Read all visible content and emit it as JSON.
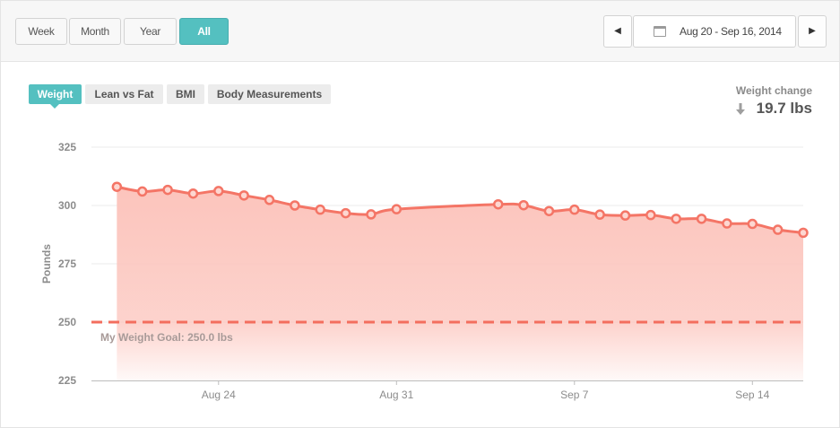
{
  "range_buttons": [
    {
      "label": "Week",
      "active": false
    },
    {
      "label": "Month",
      "active": false
    },
    {
      "label": "Year",
      "active": false
    },
    {
      "label": "All",
      "active": true
    }
  ],
  "date_range": "Aug 20 - Sep 16, 2014",
  "prev_icon": "chevron-left-icon",
  "next_icon": "chevron-right-icon",
  "tabs": [
    {
      "label": "Weight",
      "active": true
    },
    {
      "label": "Lean vs Fat",
      "active": false
    },
    {
      "label": "BMI",
      "active": false
    },
    {
      "label": "Body Measurements",
      "active": false
    }
  ],
  "weight_change": {
    "label": "Weight change",
    "value": "19.7 lbs",
    "direction": "down"
  },
  "colors": {
    "accent": "#54c0c0",
    "line": "#f47566",
    "fill": "#fcc4bc",
    "goal": "#f36e5e"
  },
  "chart_data": {
    "type": "area",
    "ylabel": "Pounds",
    "ylim": [
      225,
      325
    ],
    "yticks": [
      225,
      250,
      275,
      300,
      325
    ],
    "xlabel": "",
    "xticks": [
      {
        "date": "2014-08-24",
        "label": "Aug 24"
      },
      {
        "date": "2014-08-31",
        "label": "Aug 31"
      },
      {
        "date": "2014-09-07",
        "label": "Sep 7"
      },
      {
        "date": "2014-09-14",
        "label": "Sep 14"
      }
    ],
    "xlim": [
      "2014-08-19",
      "2014-09-16"
    ],
    "goal": {
      "value": 250,
      "label": "My Weight Goal: 250.0 lbs"
    },
    "grid": true,
    "series": [
      {
        "values": [
          {
            "date": "2014-08-20",
            "y": 308.0
          },
          {
            "date": "2014-08-21",
            "y": 306.0
          },
          {
            "date": "2014-08-22",
            "y": 306.7
          },
          {
            "date": "2014-08-23",
            "y": 305.1
          },
          {
            "date": "2014-08-24",
            "y": 306.2
          },
          {
            "date": "2014-08-25",
            "y": 304.3
          },
          {
            "date": "2014-08-26",
            "y": 302.4
          },
          {
            "date": "2014-08-27",
            "y": 300.0
          },
          {
            "date": "2014-08-28",
            "y": 298.2
          },
          {
            "date": "2014-08-29",
            "y": 296.7
          },
          {
            "date": "2014-08-30",
            "y": 296.2
          },
          {
            "date": "2014-08-31",
            "y": 298.4
          },
          {
            "date": "2014-09-04",
            "y": 300.5
          },
          {
            "date": "2014-09-05",
            "y": 300.1
          },
          {
            "date": "2014-09-06",
            "y": 297.6
          },
          {
            "date": "2014-09-07",
            "y": 298.2
          },
          {
            "date": "2014-09-08",
            "y": 296.1
          },
          {
            "date": "2014-09-09",
            "y": 295.7
          },
          {
            "date": "2014-09-10",
            "y": 295.9
          },
          {
            "date": "2014-09-11",
            "y": 294.3
          },
          {
            "date": "2014-09-12",
            "y": 294.3
          },
          {
            "date": "2014-09-13",
            "y": 292.3
          },
          {
            "date": "2014-09-14",
            "y": 292.1
          },
          {
            "date": "2014-09-15",
            "y": 289.6
          },
          {
            "date": "2014-09-16",
            "y": 288.3
          }
        ]
      }
    ]
  }
}
